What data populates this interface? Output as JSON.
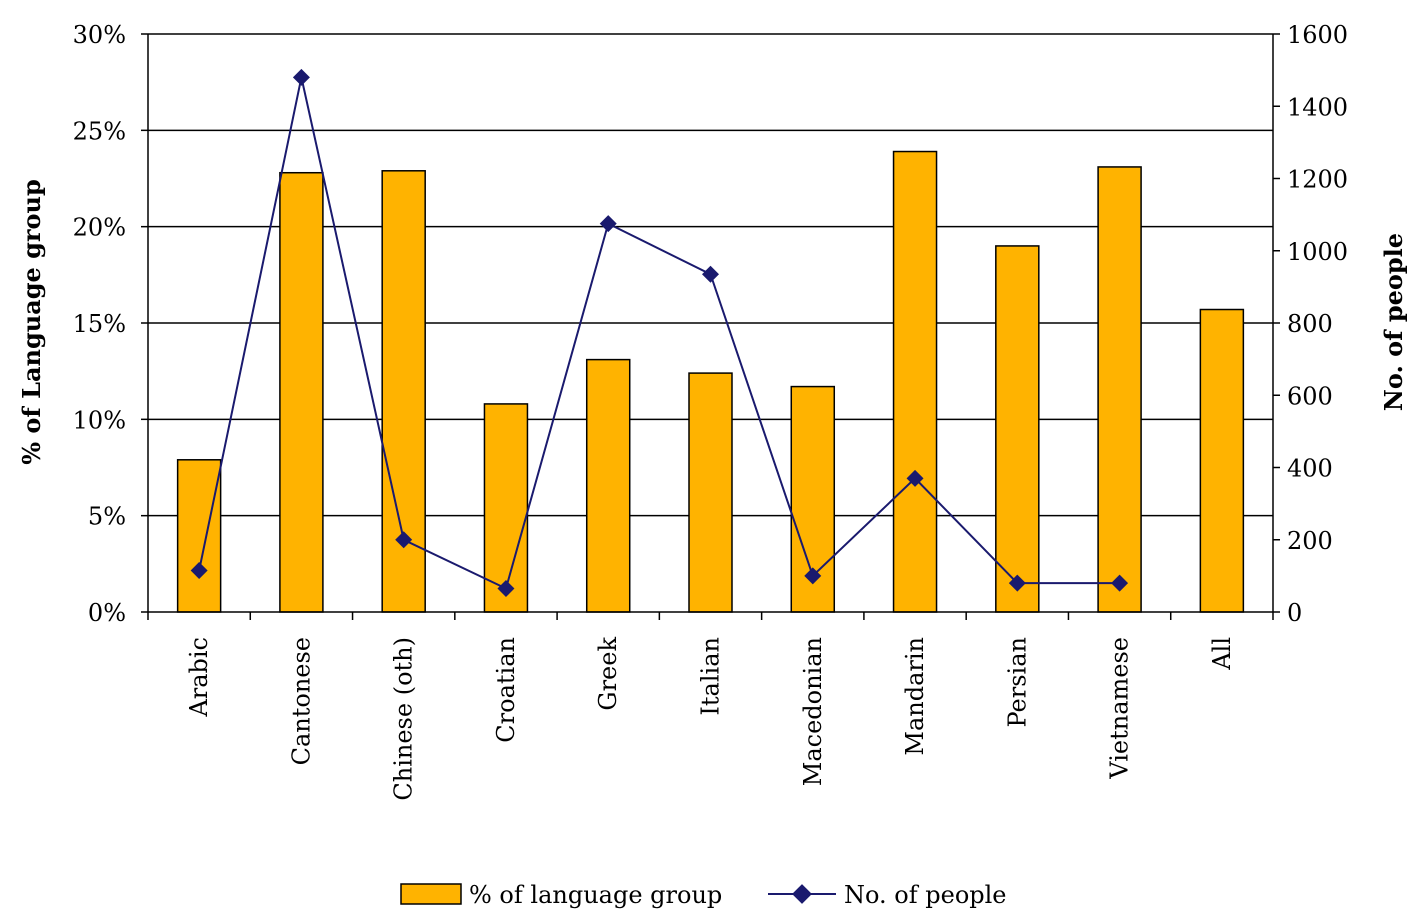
{
  "chart_data": {
    "type": "bar",
    "categories": [
      "Arabic",
      "Cantonese",
      "Chinese (oth)",
      "Croatian",
      "Greek",
      "Italian",
      "Macedonian",
      "Mandarin",
      "Persian",
      "Vietnamese",
      "All"
    ],
    "series": [
      {
        "name": "% of language group",
        "type": "bar",
        "axis": "left",
        "color": "#FFB300",
        "values": [
          7.9,
          22.8,
          22.9,
          10.8,
          13.1,
          12.4,
          11.7,
          23.9,
          19.0,
          23.1,
          15.7
        ]
      },
      {
        "name": "No. of people",
        "type": "line",
        "axis": "right",
        "color": "#1A1A6E",
        "values": [
          115,
          1480,
          200,
          65,
          1075,
          935,
          100,
          370,
          80,
          80,
          null
        ]
      }
    ],
    "ylabel": "% of Language group",
    "y2label": "No. of people",
    "ylim": [
      0,
      30
    ],
    "y2lim": [
      0,
      1600
    ],
    "y_ticks": [
      "0%",
      "5%",
      "10%",
      "15%",
      "20%",
      "25%",
      "30%"
    ],
    "y2_ticks": [
      "0",
      "200",
      "400",
      "600",
      "800",
      "1000",
      "1200",
      "1400",
      "1600"
    ],
    "grid": true,
    "legend": "bottom"
  }
}
